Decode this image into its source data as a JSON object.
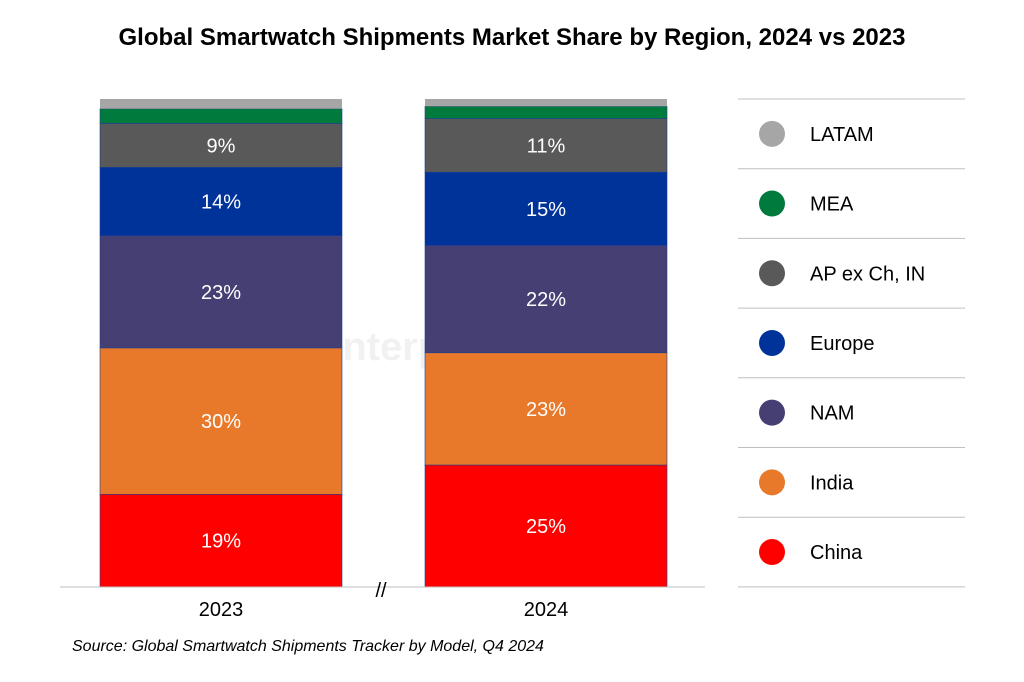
{
  "chart_data": {
    "type": "bar",
    "stacked": true,
    "title": "Global Smartwatch Shipments Market Share by Region, 2024 vs 2023",
    "source": "Source: Global Smartwatch Shipments Tracker by Model, Q4 2024",
    "watermark": "Counterpoint",
    "categories": [
      "2023",
      "2024"
    ],
    "axis_break": "//",
    "ylim": [
      0,
      100
    ],
    "grid": false,
    "legend_position": "right",
    "series": [
      {
        "name": "China",
        "color": "#FF0000",
        "values": [
          19,
          25
        ],
        "labels": [
          "19%",
          "25%"
        ]
      },
      {
        "name": "India",
        "color": "#E8792B",
        "values": [
          30,
          23
        ],
        "labels": [
          "30%",
          "23%"
        ]
      },
      {
        "name": "NAM",
        "color": "#463F74",
        "values": [
          23,
          22
        ],
        "labels": [
          "23%",
          "22%"
        ]
      },
      {
        "name": "Europe",
        "color": "#00339A",
        "values": [
          14,
          15
        ],
        "labels": [
          "14%",
          "15%"
        ]
      },
      {
        "name": "AP ex Ch, IN",
        "color": "#595959",
        "values": [
          9,
          11
        ],
        "labels": [
          "9%",
          "11%"
        ]
      },
      {
        "name": "MEA",
        "color": "#007A3D",
        "values": [
          3,
          2.5
        ],
        "labels": [
          "",
          ""
        ]
      },
      {
        "name": "LATAM",
        "color": "#A6A6A6",
        "values": [
          2,
          1.5
        ],
        "labels": [
          "",
          ""
        ]
      }
    ]
  }
}
